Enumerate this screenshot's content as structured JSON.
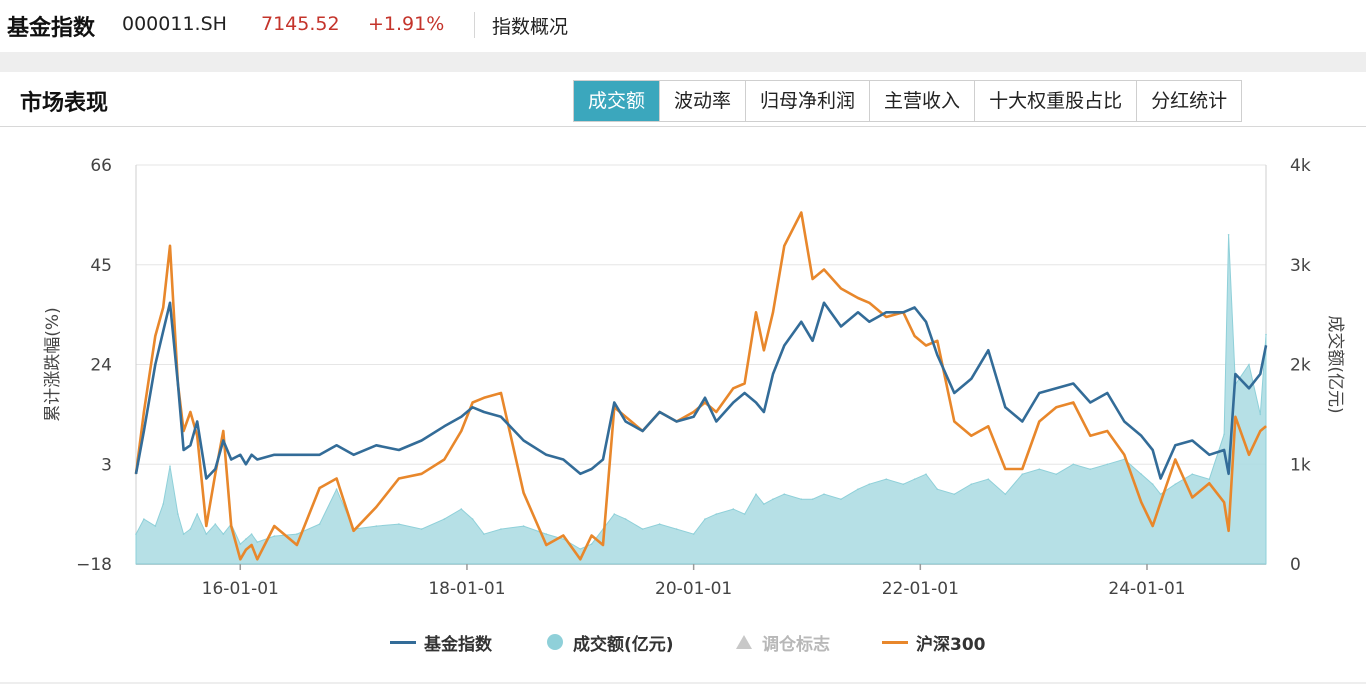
{
  "header": {
    "index_name": "基金指数",
    "index_code": "000011.SH",
    "price": "7145.52",
    "change_pct": "+1.91%",
    "overview_link": "指数概况"
  },
  "section": {
    "title": "市场表现",
    "tabs": [
      {
        "label": "成交额",
        "active": true
      },
      {
        "label": "波动率",
        "active": false
      },
      {
        "label": "归母净利润",
        "active": false
      },
      {
        "label": "主营收入",
        "active": false
      },
      {
        "label": "十大权重股占比",
        "active": false
      },
      {
        "label": "分红统计",
        "active": false
      }
    ]
  },
  "colors": {
    "fund_index": "#336c98",
    "turnover": "#8fd0d9",
    "turnover_fill": "#a9dbe2",
    "csi300": "#e8872b",
    "rebalance": "#c8c8c8",
    "grid": "#e6e6e6",
    "axis_text": "#444444"
  },
  "chart_data": {
    "type": "line+area",
    "x_tick_labels": [
      "16-01-01",
      "18-01-01",
      "20-01-01",
      "22-01-01",
      "24-01-01"
    ],
    "x_tick_years": [
      2016,
      2018,
      2020,
      2022,
      2024
    ],
    "x_range": [
      2015.08,
      2025.05
    ],
    "left_axis": {
      "label": "累计涨跌幅(%)",
      "ticks": [
        "66",
        "45",
        "24",
        "3",
        "−18"
      ],
      "tick_values": [
        66,
        45,
        24,
        3,
        -18
      ],
      "range": [
        -18,
        66
      ]
    },
    "right_axis": {
      "label": "成交额(亿元)",
      "ticks": [
        "4k",
        "3k",
        "2k",
        "1k",
        "0"
      ],
      "tick_values": [
        4000,
        3000,
        2000,
        1000,
        0
      ],
      "range": [
        0,
        4000
      ]
    },
    "legend": [
      {
        "name": "基金指数",
        "marker": "line"
      },
      {
        "name": "成交额(亿元)",
        "marker": "dot"
      },
      {
        "name": "调仓标志",
        "marker": "triangle",
        "disabled": true
      },
      {
        "name": "沪深300",
        "marker": "line"
      }
    ],
    "series": [
      {
        "name": "基金指数",
        "axis": "left",
        "x": [
          2015.08,
          2015.15,
          2015.25,
          2015.32,
          2015.38,
          2015.45,
          2015.5,
          2015.56,
          2015.62,
          2015.7,
          2015.78,
          2015.85,
          2015.92,
          2016.0,
          2016.05,
          2016.1,
          2016.15,
          2016.3,
          2016.5,
          2016.7,
          2016.85,
          2017.0,
          2017.2,
          2017.4,
          2017.6,
          2017.8,
          2017.95,
          2018.05,
          2018.15,
          2018.3,
          2018.5,
          2018.7,
          2018.85,
          2019.0,
          2019.1,
          2019.2,
          2019.3,
          2019.4,
          2019.55,
          2019.7,
          2019.85,
          2020.0,
          2020.1,
          2020.2,
          2020.35,
          2020.45,
          2020.55,
          2020.62,
          2020.7,
          2020.8,
          2020.95,
          2021.05,
          2021.15,
          2021.3,
          2021.45,
          2021.55,
          2021.7,
          2021.85,
          2021.95,
          2022.05,
          2022.15,
          2022.3,
          2022.45,
          2022.6,
          2022.75,
          2022.9,
          2023.05,
          2023.2,
          2023.35,
          2023.5,
          2023.65,
          2023.8,
          2023.95,
          2024.05,
          2024.12,
          2024.25,
          2024.4,
          2024.55,
          2024.68,
          2024.72,
          2024.78,
          2024.9,
          2025.0,
          2025.05
        ],
        "values": [
          1,
          10,
          24,
          31,
          37,
          20,
          6,
          7,
          12,
          0,
          2,
          8,
          4,
          5,
          3,
          5,
          4,
          5,
          5,
          5,
          7,
          5,
          7,
          6,
          8,
          11,
          13,
          15,
          14,
          13,
          8,
          5,
          4,
          1,
          2,
          4,
          16,
          12,
          10,
          14,
          12,
          13,
          17,
          12,
          16,
          18,
          16,
          14,
          22,
          28,
          33,
          29,
          37,
          32,
          35,
          33,
          35,
          35,
          36,
          33,
          26,
          18,
          21,
          27,
          15,
          12,
          18,
          19,
          20,
          16,
          18,
          12,
          9,
          6,
          0,
          7,
          8,
          5,
          6,
          1,
          22,
          19,
          22,
          28
        ]
      },
      {
        "name": "沪深300",
        "axis": "left",
        "x": [
          2015.08,
          2015.15,
          2015.25,
          2015.32,
          2015.38,
          2015.45,
          2015.5,
          2015.56,
          2015.62,
          2015.7,
          2015.78,
          2015.85,
          2015.92,
          2016.0,
          2016.05,
          2016.1,
          2016.15,
          2016.3,
          2016.5,
          2016.7,
          2016.85,
          2017.0,
          2017.2,
          2017.4,
          2017.6,
          2017.8,
          2017.95,
          2018.05,
          2018.15,
          2018.3,
          2018.5,
          2018.7,
          2018.85,
          2019.0,
          2019.1,
          2019.2,
          2019.3,
          2019.4,
          2019.55,
          2019.7,
          2019.85,
          2020.0,
          2020.1,
          2020.2,
          2020.35,
          2020.45,
          2020.55,
          2020.62,
          2020.7,
          2020.8,
          2020.95,
          2021.05,
          2021.15,
          2021.3,
          2021.45,
          2021.55,
          2021.7,
          2021.85,
          2021.95,
          2022.05,
          2022.15,
          2022.3,
          2022.45,
          2022.6,
          2022.75,
          2022.9,
          2023.05,
          2023.2,
          2023.35,
          2023.5,
          2023.65,
          2023.8,
          2023.95,
          2024.05,
          2024.12,
          2024.25,
          2024.4,
          2024.55,
          2024.68,
          2024.72,
          2024.78,
          2024.9,
          2025.0,
          2025.05
        ],
        "values": [
          1,
          14,
          30,
          36,
          49,
          20,
          10,
          14,
          9,
          -10,
          1,
          10,
          -10,
          -17,
          -15,
          -14,
          -17,
          -10,
          -14,
          -2,
          0,
          -11,
          -6,
          0,
          1,
          4,
          10,
          16,
          17,
          18,
          -3,
          -14,
          -12,
          -17,
          -12,
          -14,
          15,
          13,
          10,
          14,
          12,
          14,
          16,
          14,
          19,
          20,
          35,
          27,
          35,
          49,
          56,
          42,
          44,
          40,
          38,
          37,
          34,
          35,
          30,
          28,
          29,
          12,
          9,
          11,
          2,
          2,
          12,
          15,
          16,
          9,
          10,
          5,
          -5,
          -10,
          -5,
          4,
          -4,
          -1,
          -5,
          -11,
          13,
          5,
          10,
          11
        ]
      },
      {
        "name": "成交额(亿元)",
        "axis": "right",
        "x": [
          2015.08,
          2015.15,
          2015.25,
          2015.32,
          2015.38,
          2015.45,
          2015.5,
          2015.56,
          2015.62,
          2015.7,
          2015.78,
          2015.85,
          2015.92,
          2016.0,
          2016.05,
          2016.1,
          2016.15,
          2016.3,
          2016.5,
          2016.7,
          2016.85,
          2017.0,
          2017.2,
          2017.4,
          2017.6,
          2017.8,
          2017.95,
          2018.05,
          2018.15,
          2018.3,
          2018.5,
          2018.7,
          2018.85,
          2019.0,
          2019.1,
          2019.2,
          2019.3,
          2019.4,
          2019.55,
          2019.7,
          2019.85,
          2020.0,
          2020.1,
          2020.2,
          2020.35,
          2020.45,
          2020.55,
          2020.62,
          2020.7,
          2020.8,
          2020.95,
          2021.05,
          2021.15,
          2021.3,
          2021.45,
          2021.55,
          2021.7,
          2021.85,
          2021.95,
          2022.05,
          2022.15,
          2022.3,
          2022.45,
          2022.6,
          2022.75,
          2022.9,
          2023.05,
          2023.2,
          2023.35,
          2023.5,
          2023.65,
          2023.8,
          2023.95,
          2024.05,
          2024.12,
          2024.25,
          2024.4,
          2024.55,
          2024.68,
          2024.72,
          2024.78,
          2024.9,
          2025.0,
          2025.05
        ],
        "values": [
          300,
          450,
          380,
          600,
          980,
          500,
          300,
          350,
          500,
          300,
          400,
          300,
          400,
          200,
          250,
          300,
          220,
          280,
          300,
          400,
          750,
          350,
          380,
          400,
          350,
          450,
          550,
          450,
          300,
          350,
          380,
          300,
          250,
          150,
          200,
          350,
          500,
          450,
          350,
          400,
          350,
          300,
          450,
          500,
          550,
          500,
          700,
          600,
          650,
          700,
          650,
          650,
          700,
          650,
          750,
          800,
          850,
          800,
          850,
          900,
          750,
          700,
          800,
          850,
          700,
          900,
          950,
          900,
          1000,
          950,
          1000,
          1050,
          900,
          800,
          700,
          800,
          900,
          850,
          1300,
          3300,
          1800,
          2000,
          1500,
          2300
        ]
      }
    ]
  }
}
